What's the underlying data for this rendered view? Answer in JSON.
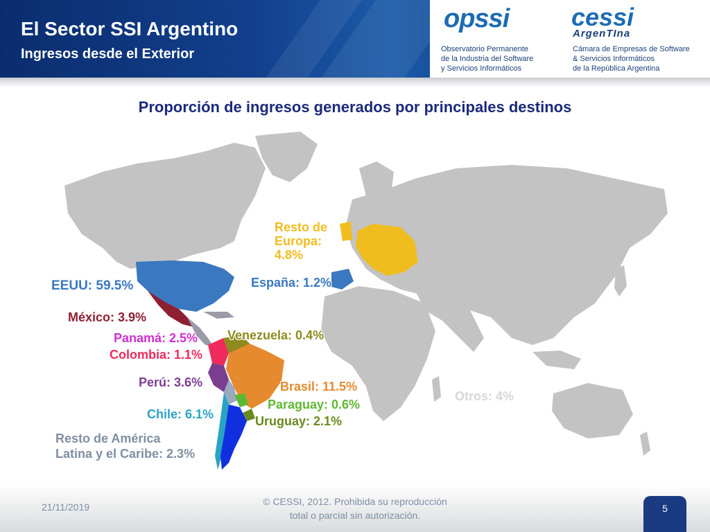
{
  "header": {
    "title": "El Sector SSI Argentino",
    "subtitle": "Ingresos desde el Exterior",
    "opssi_logo": "opssi",
    "opssi_desc": "Observatorio Permanente\nde la Industria del Software\ny Servicios Informáticos",
    "cessi_logo": "cessi",
    "cessi_sub": "ArgenTIna",
    "cessi_desc": "Cámara de Empresas de Software\n& Servicios Informáticos\nde la República Argentina"
  },
  "map_title": "Proporción de ingresos generados por principales destinos",
  "regions": [
    {
      "id": "eeuu",
      "label": "EEUU: 59.5%",
      "color": "#3a78c0"
    },
    {
      "id": "mexico",
      "label": "México: 3.9%",
      "color": "#8f1f32"
    },
    {
      "id": "panama",
      "label": "Panamá: 2.5%",
      "color": "#cf2fd0"
    },
    {
      "id": "colombia",
      "label": "Colombia: 1.1%",
      "color": "#ee2b5a"
    },
    {
      "id": "venezuela",
      "label": "Venezuela: 0.4%",
      "color": "#8f8a1e"
    },
    {
      "id": "peru",
      "label": "Perú: 3.6%",
      "color": "#7a3d8f"
    },
    {
      "id": "brasil",
      "label": "Brasil: 11.5%",
      "color": "#e58a2e"
    },
    {
      "id": "paraguay",
      "label": "Paraguay: 0.6%",
      "color": "#5fb832"
    },
    {
      "id": "uruguay",
      "label": "Uruguay: 2.1%",
      "color": "#6a8a1f"
    },
    {
      "id": "chile",
      "label": "Chile: 6.1%",
      "color": "#29a3c4"
    },
    {
      "id": "resto_america",
      "label": "Resto de América\nLatina y el Caribe: 2.3%",
      "color": "#7f8fa3"
    },
    {
      "id": "espana",
      "label": "España: 1.2%",
      "color": "#3a78c0"
    },
    {
      "id": "resto_europa",
      "label": "Resto de\nEuropa:\n4.8%",
      "color": "#f0bd1f"
    },
    {
      "id": "otros",
      "label": "Otros: 4%",
      "color": "#d7d7d7"
    }
  ],
  "colors": {
    "land": "#c3c3c3",
    "argentina": "#1030e0"
  },
  "footer": {
    "date": "21/11/2019",
    "copyright": "© CESSI, 2012. Prohibida su reproducción\ntotal o parcial sin autorización.",
    "page_number": "5"
  }
}
